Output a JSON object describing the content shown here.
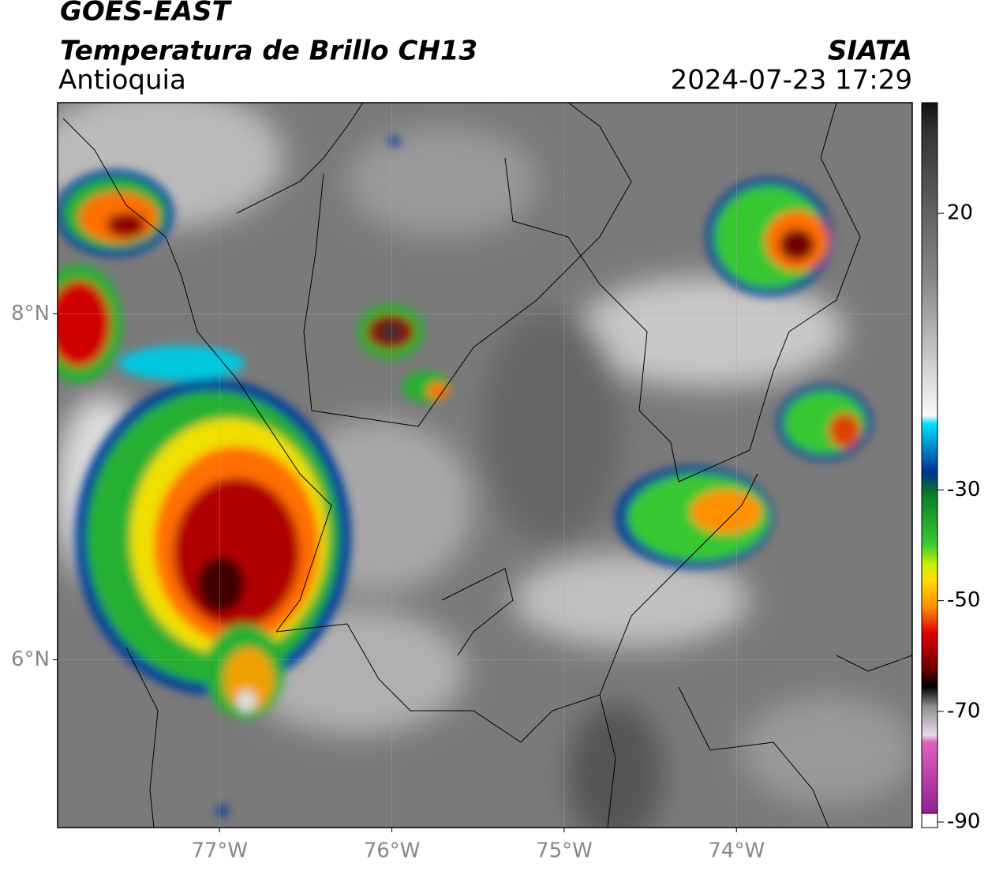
{
  "header": {
    "title": "GOES-EAST",
    "subtitle": "Temperatura de Brillo CH13",
    "region": "Antioquia",
    "source": "SIATA",
    "timestamp": "2024-07-23 17:29"
  },
  "map": {
    "xlim": [
      -77.94,
      -72.98
    ],
    "ylim": [
      5.03,
      9.22
    ],
    "xticks": [
      {
        "value": -77,
        "label": "77°W"
      },
      {
        "value": -76,
        "label": "76°W"
      },
      {
        "value": -75,
        "label": "75°W"
      },
      {
        "value": -74,
        "label": "74°W"
      }
    ],
    "yticks": [
      {
        "value": 6,
        "label": "6°N"
      },
      {
        "value": 8,
        "label": "8°N"
      }
    ],
    "grid": true
  },
  "colorbar": {
    "lim": [
      -91,
      40
    ],
    "ticks": [
      20,
      -30,
      -50,
      -70,
      -90
    ]
  }
}
